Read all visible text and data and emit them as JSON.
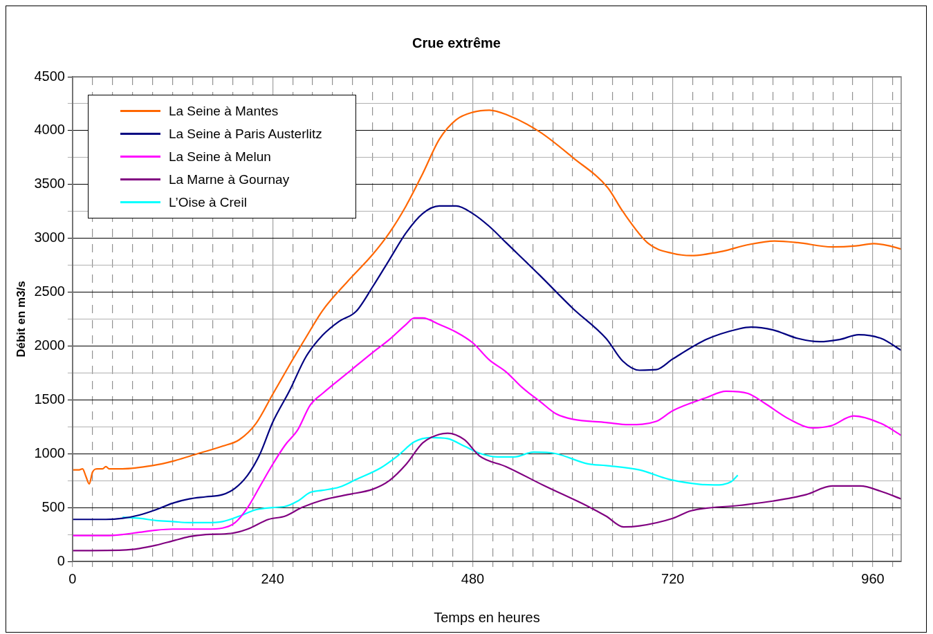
{
  "chart_data": {
    "type": "line",
    "title": "Crue extrême",
    "xlabel": "Temps en heures",
    "ylabel": "Débit en m3/s",
    "xlim": [
      0,
      994
    ],
    "xticks": [
      0,
      {
        "value": 24,
        "label": null
      },
      {
        "value": 48,
        "label": null
      },
      {
        "value": 72,
        "label": null
      },
      {
        "value": 96,
        "label": null
      },
      {
        "value": 120,
        "label": null
      },
      {
        "value": 144,
        "label": null
      },
      {
        "value": 168,
        "label": null
      },
      {
        "value": 192,
        "label": null
      },
      {
        "value": 216,
        "label": null
      },
      240,
      {
        "value": 264,
        "label": null
      },
      {
        "value": 288,
        "label": null
      },
      {
        "value": 312,
        "label": null
      },
      {
        "value": 336,
        "label": null
      },
      {
        "value": 360,
        "label": null
      },
      {
        "value": 384,
        "label": null
      },
      {
        "value": 408,
        "label": null
      },
      {
        "value": 432,
        "label": null
      },
      {
        "value": 456,
        "label": null
      },
      480,
      {
        "value": 504,
        "label": null
      },
      {
        "value": 528,
        "label": null
      },
      {
        "value": 552,
        "label": null
      },
      {
        "value": 576,
        "label": null
      },
      {
        "value": 600,
        "label": null
      },
      {
        "value": 624,
        "label": null
      },
      {
        "value": 648,
        "label": null
      },
      {
        "value": 672,
        "label": null
      },
      {
        "value": 696,
        "label": null
      },
      720,
      {
        "value": 744,
        "label": null
      },
      {
        "value": 768,
        "label": null
      },
      {
        "value": 792,
        "label": null
      },
      {
        "value": 816,
        "label": null
      },
      {
        "value": 840,
        "label": null
      },
      {
        "value": 864,
        "label": null
      },
      {
        "value": 888,
        "label": null
      },
      {
        "value": 912,
        "label": null
      },
      {
        "value": 936,
        "label": null
      },
      960,
      {
        "value": 984,
        "label": null
      }
    ],
    "ylim": [
      0,
      4500
    ],
    "yticks": [
      0,
      {
        "value": 250,
        "label": null
      },
      500,
      {
        "value": 750,
        "label": null
      },
      1000,
      {
        "value": 1250,
        "label": null
      },
      1500,
      {
        "value": 1750,
        "label": null
      },
      2000,
      {
        "value": 2250,
        "label": null
      },
      2500,
      {
        "value": 2750,
        "label": null
      },
      3000,
      {
        "value": 3250,
        "label": null
      },
      3500,
      {
        "value": 3750,
        "label": null
      },
      4000,
      {
        "value": 4250,
        "label": null
      },
      4500
    ],
    "grid": true,
    "legend": "top left",
    "marker": "none",
    "line_style": "solid",
    "series": [
      {
        "name": "La Seine à Mantes",
        "color": "#ff6600",
        "x": [
          0,
          8,
          12,
          16,
          20,
          24,
          30,
          36,
          40,
          44,
          50,
          60,
          96,
          120,
          150,
          180,
          200,
          220,
          240,
          260,
          280,
          300,
          330,
          360,
          380,
          400,
          420,
          440,
          460,
          480,
          500,
          520,
          560,
          600,
          642,
          660,
          691,
          720,
          742,
          780,
          810,
          842,
          870,
          911,
          940,
          961,
          980,
          994
        ],
        "values": [
          850,
          850,
          860,
          790,
          720,
          830,
          860,
          860,
          880,
          860,
          860,
          860,
          890,
          930,
          1000,
          1070,
          1130,
          1280,
          1550,
          1820,
          2080,
          2330,
          2600,
          2850,
          3050,
          3300,
          3600,
          3920,
          4100,
          4170,
          4190,
          4150,
          3990,
          3750,
          3470,
          3250,
          2950,
          2860,
          2840,
          2880,
          2940,
          2975,
          2960,
          2920,
          2930,
          2950,
          2930,
          2900
        ]
      },
      {
        "name": "La Seine à Paris Austerlitz",
        "color": "#000080",
        "x": [
          0,
          40,
          60,
          80,
          100,
          120,
          140,
          160,
          180,
          195,
          210,
          225,
          240,
          260,
          280,
          300,
          320,
          340,
          360,
          380,
          400,
          420,
          440,
          460,
          480,
          500,
          520,
          560,
          600,
          640,
          660,
          680,
          700,
          720,
          760,
          800,
          814,
          840,
          870,
          896,
          920,
          943,
          970,
          994
        ],
        "values": [
          390,
          390,
          400,
          430,
          480,
          540,
          580,
          600,
          620,
          680,
          800,
          1000,
          1290,
          1580,
          1900,
          2100,
          2230,
          2320,
          2550,
          2800,
          3050,
          3230,
          3300,
          3300,
          3230,
          3110,
          2960,
          2660,
          2350,
          2070,
          1860,
          1775,
          1780,
          1880,
          2060,
          2160,
          2175,
          2150,
          2070,
          2040,
          2060,
          2105,
          2070,
          1960
        ]
      },
      {
        "name": "La Seine à Melun",
        "color": "#ff00ff",
        "x": [
          0,
          40,
          60,
          80,
          100,
          120,
          160,
          180,
          195,
          210,
          225,
          240,
          255,
          270,
          285,
          300,
          330,
          360,
          380,
          400,
          410,
          420,
          440,
          460,
          480,
          500,
          520,
          540,
          560,
          580,
          600,
          640,
          667,
          700,
          720,
          760,
          784,
          810,
          830,
          860,
          888,
          910,
          937,
          970,
          994
        ],
        "values": [
          240,
          240,
          250,
          270,
          290,
          300,
          300,
          310,
          360,
          500,
          700,
          900,
          1080,
          1220,
          1450,
          1560,
          1750,
          1940,
          2060,
          2200,
          2260,
          2260,
          2200,
          2130,
          2030,
          1870,
          1760,
          1610,
          1490,
          1370,
          1320,
          1290,
          1270,
          1300,
          1400,
          1520,
          1580,
          1560,
          1470,
          1320,
          1240,
          1260,
          1350,
          1280,
          1170
        ]
      },
      {
        "name": "La Marne à Gournay",
        "color": "#800080",
        "x": [
          0,
          60,
          80,
          100,
          120,
          140,
          160,
          190,
          210,
          235,
          255,
          275,
          300,
          330,
          360,
          380,
          400,
          420,
          440,
          450,
          470,
          488,
          520,
          565,
          618,
          640,
          661,
          680,
          720,
          742,
          800,
          840,
          880,
          911,
          945,
          970,
          994
        ],
        "values": [
          100,
          105,
          120,
          150,
          190,
          230,
          250,
          260,
          300,
          390,
          420,
          500,
          570,
          620,
          670,
          750,
          900,
          1100,
          1180,
          1190,
          1130,
          980,
          880,
          706,
          512,
          420,
          320,
          330,
          400,
          470,
          520,
          560,
          620,
          700,
          700,
          650,
          580
        ]
      },
      {
        "name": "L’Oise à Creil",
        "color": "#00ffff",
        "x": [
          60,
          80,
          100,
          120,
          140,
          160,
          180,
          200,
          220,
          240,
          255,
          270,
          285,
          300,
          320,
          340,
          370,
          390,
          410,
          430,
          450,
          470,
          490,
          510,
          530,
          553,
          580,
          618,
          640,
          680,
          715,
          753,
          770,
          790,
          798
        ],
        "values": [
          410,
          400,
          380,
          370,
          360,
          360,
          370,
          420,
          480,
          500,
          510,
          560,
          640,
          660,
          690,
          760,
          870,
          980,
          1110,
          1150,
          1140,
          1070,
          1000,
          970,
          970,
          1015,
          1000,
          906,
          890,
          850,
          763,
          715,
          710,
          740,
          800
        ]
      }
    ]
  }
}
